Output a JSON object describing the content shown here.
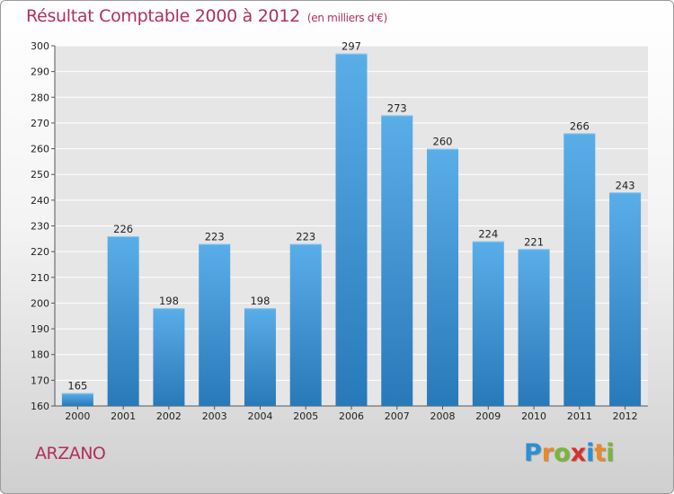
{
  "title": "Résultat Comptable 2000 à 2012",
  "subtitle": "(en milliers d'€)",
  "location": "ARZANO",
  "brand": {
    "letters": [
      "P",
      "r",
      "o",
      "x",
      "i",
      "t",
      "i"
    ],
    "colors": [
      "#2a8fd6",
      "#e8892b",
      "#7ab53a",
      "#d9302c",
      "#2a8fd6",
      "#e8892b",
      "#7ab53a"
    ]
  },
  "colors": {
    "bar_top": "#5aaee8",
    "bar_bottom": "#2879b8",
    "title": "#b0305a"
  },
  "chart_data": {
    "type": "bar",
    "categories": [
      "2000",
      "2001",
      "2002",
      "2003",
      "2004",
      "2005",
      "2006",
      "2007",
      "2008",
      "2009",
      "2010",
      "2011",
      "2012"
    ],
    "values": [
      165,
      226,
      198,
      223,
      198,
      223,
      297,
      273,
      260,
      224,
      221,
      266,
      243
    ],
    "ylim": [
      160,
      300
    ],
    "yticks": [
      160,
      170,
      180,
      190,
      200,
      210,
      220,
      230,
      240,
      250,
      260,
      270,
      280,
      290,
      300
    ],
    "grid": true,
    "legend": "none"
  }
}
